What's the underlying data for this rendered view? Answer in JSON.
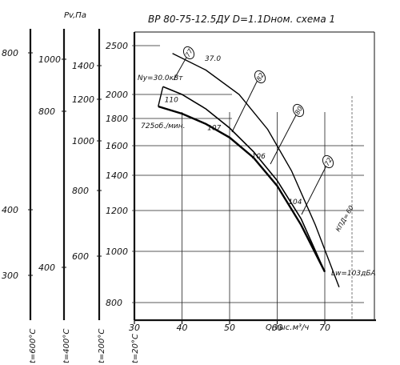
{
  "title": "ВР 80-75-12.5ДУ D=1.1Dном. схема 1",
  "unit_label": "Pv,Па",
  "chart_data": {
    "type": "line",
    "title": "ВР 80-75-12.5ДУ D=1.1Dном. схема 1",
    "xlabel": "Q,тыс.м³/ч",
    "ylabel": "Pv,Па",
    "x_ticks": [
      "30",
      "40",
      "50",
      "60",
      "70"
    ],
    "xlim": [
      30,
      70
    ],
    "y_ticks": [
      "800",
      "1000",
      "1200",
      "1400",
      "1600",
      "1800",
      "2000",
      "2500"
    ],
    "y_note": "main pressure axis is non-linear (log-like scale)",
    "series": [
      {
        "name": "",
        "label": "725об./мин.",
        "x": [
          35,
          40,
          45,
          50,
          55,
          60,
          65,
          70
        ],
        "y": [
          1900,
          1840,
          1760,
          1660,
          1520,
          1340,
          1130,
          920
        ]
      },
      {
        "name": "",
        "label": "Ny=30.0кВт",
        "x": [
          36,
          40,
          45,
          50,
          55,
          60,
          65,
          70
        ],
        "y": [
          2080,
          2000,
          1880,
          1730,
          1560,
          1370,
          1160,
          920
        ]
      }
    ],
    "power_points": [
      {
        "label": "110",
        "x": 36,
        "y": 1910
      },
      {
        "label": "107",
        "x": 47,
        "y": 1680
      },
      {
        "label": "106",
        "x": 57,
        "y": 1480
      },
      {
        "label": "104",
        "x": 64,
        "y": 1210
      }
    ],
    "efficiency_labels": [
      "77",
      "82",
      "80",
      "72"
    ],
    "efficiency_prefix": "КПД=",
    "efficiency_end": "60",
    "top_efficiency": "37.0",
    "noise_label": "Lw=103дБА",
    "temperature_axes": [
      {
        "label": "t=600°C",
        "ticks": [
          "800",
          "400",
          "300"
        ]
      },
      {
        "label": "t=400°C",
        "ticks": [
          "1000",
          "800",
          "400"
        ]
      },
      {
        "label": "t=200°C",
        "ticks": [
          "1400",
          "1200",
          "1000",
          "800",
          "600"
        ]
      },
      {
        "label": "t=20°C",
        "ticks": []
      }
    ]
  }
}
